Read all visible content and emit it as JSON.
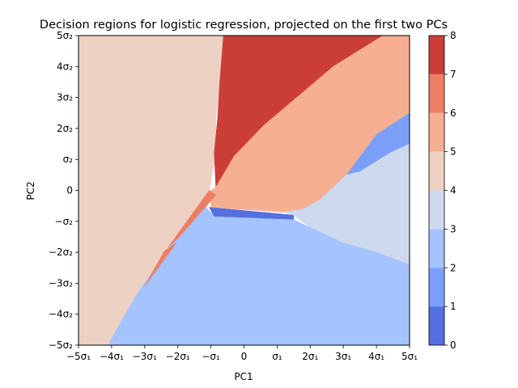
{
  "chart_data": {
    "type": "contour",
    "title": "Decision regions for logistic regression, projected on the first two PCs",
    "xlabel": "PC1",
    "ylabel": "PC2",
    "xlim": [
      -5,
      5
    ],
    "ylim": [
      -5,
      5
    ],
    "x_ticks": [
      "−5σ₁",
      "−4σ₁",
      "−3σ₁",
      "−2σ₁",
      "−σ₁",
      "0",
      "σ₁",
      "2σ₁",
      "3σ₁",
      "4σ₁",
      "5σ₁"
    ],
    "y_ticks": [
      "−5σ₂",
      "−4σ₂",
      "−3σ₂",
      "−2σ₂",
      "−σ₂",
      "0",
      "σ₂",
      "2σ₂",
      "3σ₂",
      "4σ₂",
      "5σ₂"
    ],
    "colorbar": {
      "ticks": [
        "0",
        "1",
        "2",
        "3",
        "4",
        "5",
        "6",
        "7",
        "8"
      ],
      "levels": [
        {
          "range": [
            0,
            1
          ],
          "color": "#5470de"
        },
        {
          "range": [
            1,
            2
          ],
          "color": "#7b9ff9"
        },
        {
          "range": [
            2,
            3
          ],
          "color": "#a5c3fe"
        },
        {
          "range": [
            3,
            4
          ],
          "color": "#cdd9ec"
        },
        {
          "range": [
            4,
            5
          ],
          "color": "#edd1c2"
        },
        {
          "range": [
            5,
            6
          ],
          "color": "#f7af91"
        },
        {
          "range": [
            6,
            7
          ],
          "color": "#ec7f63"
        },
        {
          "range": [
            7,
            8
          ],
          "color": "#cb3e38"
        }
      ]
    },
    "regions": [
      {
        "level": 4,
        "points": [
          [
            -5,
            -5
          ],
          [
            -4.1,
            -5
          ],
          [
            -3.7,
            -4.2
          ],
          [
            -3.2,
            -3.3
          ],
          [
            -2.7,
            -2.5
          ],
          [
            -2.1,
            -1.6
          ],
          [
            -1.1,
            -0.5
          ],
          [
            -1,
            0.3
          ],
          [
            -0.85,
            1.2
          ],
          [
            -0.85,
            2.3
          ],
          [
            -0.75,
            3.2
          ],
          [
            -0.6,
            4.3
          ],
          [
            -0.6,
            5
          ],
          [
            -5,
            5
          ]
        ]
      },
      {
        "level": 7,
        "points": [
          [
            -0.62,
            5
          ],
          [
            4.2,
            5
          ],
          [
            2.7,
            4
          ],
          [
            0.6,
            2.1
          ],
          [
            -0.3,
            1.1
          ],
          [
            -0.85,
            0.1
          ],
          [
            -0.9,
            1.2
          ],
          [
            -0.8,
            2.3
          ],
          [
            -0.73,
            3.5
          ]
        ]
      },
      {
        "level": 5,
        "points": [
          [
            4.2,
            5
          ],
          [
            5,
            5
          ],
          [
            5,
            2.5
          ],
          [
            4,
            1.8
          ],
          [
            3.1,
            0.5
          ],
          [
            2.3,
            -0.3
          ],
          [
            1.8,
            -0.6
          ],
          [
            1.2,
            -0.7
          ],
          [
            -1,
            -0.55
          ],
          [
            -1,
            0
          ],
          [
            -0.85,
            0.1
          ],
          [
            -0.3,
            1.1
          ],
          [
            0.6,
            2.1
          ],
          [
            2.7,
            4
          ]
        ]
      },
      {
        "level": 0,
        "points": [
          [
            -1.05,
            -0.55
          ],
          [
            1.5,
            -0.8
          ],
          [
            1.5,
            -0.95
          ],
          [
            -0.9,
            -0.85
          ]
        ]
      },
      {
        "level": 1,
        "points": [
          [
            3.1,
            0.5
          ],
          [
            4,
            1.8
          ],
          [
            5,
            2.5
          ],
          [
            5,
            1.5
          ],
          [
            4.4,
            1.2
          ],
          [
            3.5,
            0.6
          ]
        ]
      },
      {
        "level": 3,
        "points": [
          [
            1.5,
            -0.8
          ],
          [
            1.2,
            -0.7
          ],
          [
            1.8,
            -0.6
          ],
          [
            2.3,
            -0.3
          ],
          [
            3.1,
            0.5
          ],
          [
            3.5,
            0.6
          ],
          [
            4.4,
            1.2
          ],
          [
            5,
            1.5
          ],
          [
            5,
            -2.4
          ],
          [
            4,
            -2
          ],
          [
            3,
            -1.7
          ],
          [
            2,
            -1.2
          ]
        ]
      },
      {
        "level": 2,
        "points": [
          [
            -4.1,
            -5
          ],
          [
            5,
            -5
          ],
          [
            5,
            -2.4
          ],
          [
            4,
            -2
          ],
          [
            3,
            -1.7
          ],
          [
            2,
            -1.2
          ],
          [
            1.5,
            -0.95
          ],
          [
            -0.9,
            -0.85
          ],
          [
            -1.15,
            -0.55
          ],
          [
            -2.1,
            -1.6
          ],
          [
            -3.2,
            -3.3
          ],
          [
            -3.7,
            -4.2
          ]
        ]
      },
      {
        "level": 6,
        "points": [
          [
            -1.05,
            0
          ],
          [
            -0.85,
            -0.15
          ],
          [
            -2.0,
            -1.55
          ],
          [
            -2.3,
            -1.85
          ]
        ]
      },
      {
        "level": 6,
        "points": [
          [
            -2.4,
            -1.95
          ],
          [
            -2.05,
            -1.7
          ],
          [
            -2.8,
            -2.8
          ],
          [
            -3.0,
            -3.1
          ]
        ]
      }
    ]
  }
}
